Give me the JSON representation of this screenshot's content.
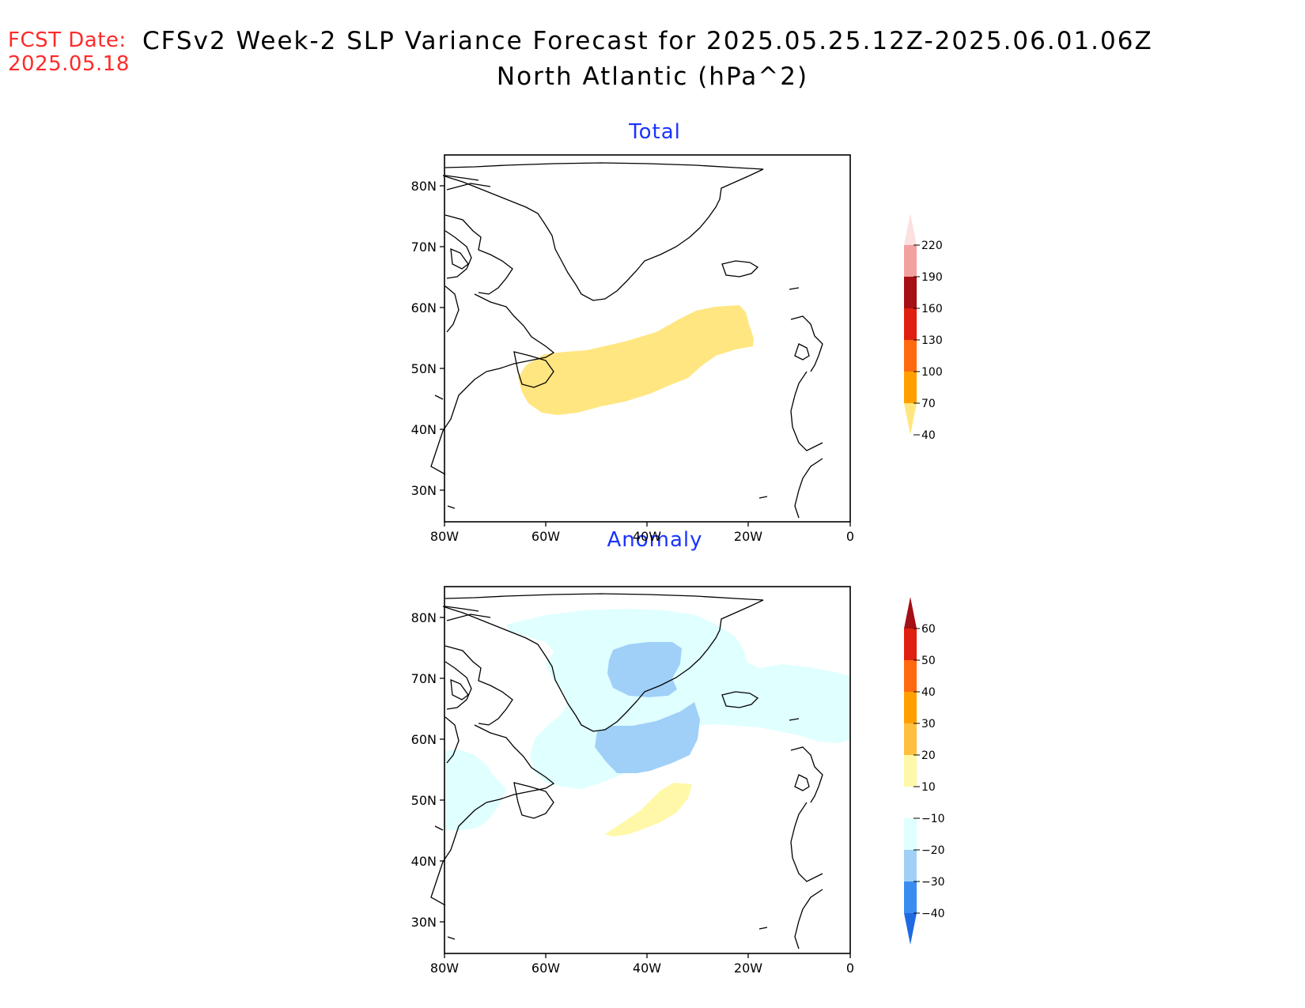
{
  "header": {
    "fcst_label": "FCST Date:",
    "fcst_date": "2025.05.18",
    "title_line1": "CFSv2 Week-2 SLP Variance Forecast for 2025.05.25.12Z-2025.06.01.06Z",
    "title_line2": "North Atlantic (hPa^2)"
  },
  "axes": {
    "lat_labels": [
      "80N",
      "70N",
      "60N",
      "50N",
      "40N",
      "30N"
    ],
    "lon_labels": [
      "80W",
      "60W",
      "40W",
      "20W",
      "0"
    ]
  },
  "panels": [
    {
      "title": "Total",
      "colorbar": {
        "labels": [
          "220",
          "190",
          "160",
          "130",
          "100",
          "70",
          "40"
        ],
        "colors": [
          "#fde0e0",
          "#f3a0a0",
          "#a50f15",
          "#e0200e",
          "#ff6a10",
          "#ffa000",
          "#ffe680"
        ],
        "shown_fill": {
          "color": "#ffe680",
          "range": [
            "40",
            "70"
          ]
        }
      }
    },
    {
      "title": "Anomaly",
      "colorbar": {
        "labels": [
          "60",
          "50",
          "40",
          "30",
          "20",
          "10",
          "-10",
          "-20",
          "-30",
          "-40"
        ],
        "colors": [
          "#a50f15",
          "#e0200e",
          "#ff6a10",
          "#ffa000",
          "#ffc040",
          "#fff8a8",
          "#ffffff",
          "#e0ffff",
          "#a0d0f8",
          "#3a8cf0",
          "#1f6ae0"
        ],
        "shown_fills": [
          {
            "color": "#fff8a8",
            "range": [
              "10",
              "20"
            ]
          },
          {
            "color": "#e0ffff",
            "range": [
              "-20",
              "-10"
            ]
          },
          {
            "color": "#a0d0f8",
            "range": [
              "-30",
              "-20"
            ]
          }
        ]
      }
    }
  ]
}
